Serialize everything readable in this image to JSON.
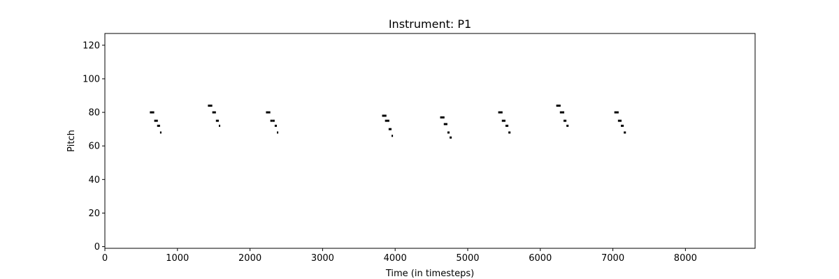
{
  "chart_data": {
    "type": "scatter",
    "title": "Instrument: P1",
    "xlabel": "Time (in timesteps)",
    "ylabel": "Pitch",
    "xlim": [
      0,
      8960
    ],
    "ylim": [
      -1,
      127
    ],
    "xticks": [
      0,
      1000,
      2000,
      3000,
      4000,
      5000,
      6000,
      7000,
      8000
    ],
    "yticks": [
      0,
      20,
      40,
      60,
      80,
      100,
      120
    ],
    "grid": false,
    "legend": "none",
    "note_color": "#000000",
    "notes": [
      {
        "start": 620,
        "end": 680,
        "pitch": 80
      },
      {
        "start": 680,
        "end": 730,
        "pitch": 75
      },
      {
        "start": 720,
        "end": 760,
        "pitch": 72
      },
      {
        "start": 760,
        "end": 780,
        "pitch": 68
      },
      {
        "start": 1420,
        "end": 1480,
        "pitch": 84
      },
      {
        "start": 1480,
        "end": 1530,
        "pitch": 80
      },
      {
        "start": 1530,
        "end": 1570,
        "pitch": 75
      },
      {
        "start": 1570,
        "end": 1590,
        "pitch": 72
      },
      {
        "start": 2220,
        "end": 2250,
        "pitch": 80
      },
      {
        "start": 2250,
        "end": 2280,
        "pitch": 80
      },
      {
        "start": 2280,
        "end": 2310,
        "pitch": 75
      },
      {
        "start": 2310,
        "end": 2340,
        "pitch": 75
      },
      {
        "start": 2340,
        "end": 2370,
        "pitch": 72
      },
      {
        "start": 2370,
        "end": 2390,
        "pitch": 68
      },
      {
        "start": 3820,
        "end": 3880,
        "pitch": 78
      },
      {
        "start": 3860,
        "end": 3920,
        "pitch": 75
      },
      {
        "start": 3910,
        "end": 3950,
        "pitch": 70
      },
      {
        "start": 3950,
        "end": 3970,
        "pitch": 66
      },
      {
        "start": 4620,
        "end": 4680,
        "pitch": 77
      },
      {
        "start": 4670,
        "end": 4720,
        "pitch": 73
      },
      {
        "start": 4720,
        "end": 4750,
        "pitch": 68
      },
      {
        "start": 4750,
        "end": 4780,
        "pitch": 65
      },
      {
        "start": 5420,
        "end": 5480,
        "pitch": 80
      },
      {
        "start": 5470,
        "end": 5520,
        "pitch": 75
      },
      {
        "start": 5520,
        "end": 5560,
        "pitch": 72
      },
      {
        "start": 5560,
        "end": 5590,
        "pitch": 68
      },
      {
        "start": 6220,
        "end": 6280,
        "pitch": 84
      },
      {
        "start": 6270,
        "end": 6330,
        "pitch": 80
      },
      {
        "start": 6320,
        "end": 6360,
        "pitch": 75
      },
      {
        "start": 6360,
        "end": 6390,
        "pitch": 72
      },
      {
        "start": 7020,
        "end": 7080,
        "pitch": 80
      },
      {
        "start": 7070,
        "end": 7120,
        "pitch": 75
      },
      {
        "start": 7110,
        "end": 7150,
        "pitch": 72
      },
      {
        "start": 7150,
        "end": 7180,
        "pitch": 68
      }
    ]
  }
}
